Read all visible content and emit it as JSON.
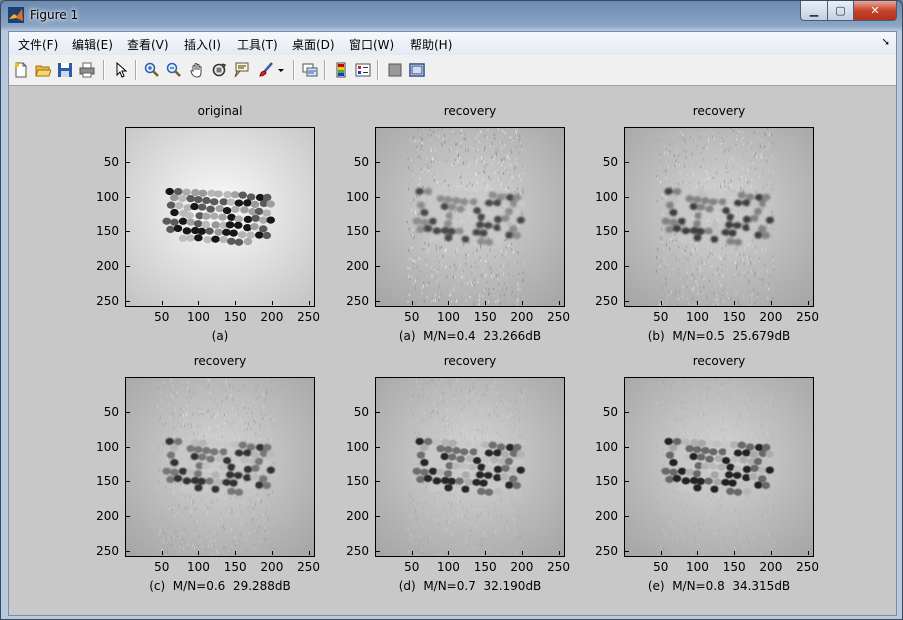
{
  "window": {
    "title": "Figure 1"
  },
  "menubar": {
    "items": [
      "文件(F)",
      "编辑(E)",
      "查看(V)",
      "插入(I)",
      "工具(T)",
      "桌面(D)",
      "窗口(W)",
      "帮助(H)"
    ],
    "arrow": "➘"
  },
  "toolbar": {
    "tools": [
      "new-figure-icon",
      "open-file-icon",
      "save-icon",
      "print-icon",
      "pointer-icon",
      "zoom-in-icon",
      "zoom-out-icon",
      "pan-hand-icon",
      "rotate-3d-icon",
      "data-cursor-icon",
      "brush-icon",
      "link-plot-icon",
      "colorbar-icon",
      "legend-icon",
      "hide-plot-tools-icon",
      "show-plot-tools-icon"
    ]
  },
  "axes": [
    {
      "title": "original",
      "xlabel": "(a)",
      "kind": "orig"
    },
    {
      "title": "recovery",
      "xlabel": "(a)  M/N=0.4  23.266dB",
      "kind": "r4",
      "noise": 0.42
    },
    {
      "title": "recovery",
      "xlabel": "(b)  M/N=0.5  25.679dB",
      "kind": "r5",
      "noise": 0.34
    },
    {
      "title": "recovery",
      "xlabel": "(c)  M/N=0.6  29.288dB",
      "kind": "r6",
      "noise": 0.24
    },
    {
      "title": "recovery",
      "xlabel": "(d)  M/N=0.7  32.190dB",
      "kind": "r7",
      "noise": 0.17
    },
    {
      "title": "recovery",
      "xlabel": "(e)  M/N=0.8  34.315dB",
      "kind": "r8",
      "noise": 0.12
    }
  ],
  "ticks": {
    "y": [
      "50",
      "100",
      "150",
      "200",
      "250"
    ],
    "x": [
      "50",
      "100",
      "150",
      "200",
      "250"
    ]
  }
}
